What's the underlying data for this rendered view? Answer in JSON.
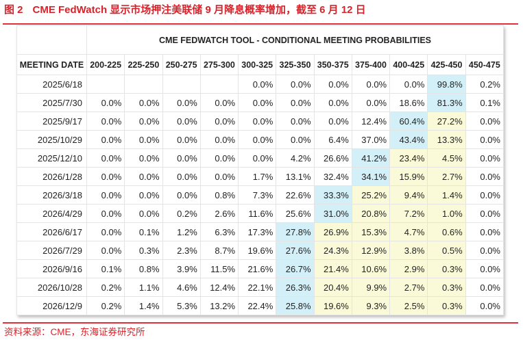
{
  "title": {
    "figure": "图 2",
    "text": "CME FedWatch 显示市场押注美联储 9 月降息概率增加，截至 6 月 12 日"
  },
  "table": {
    "super_header": "CME FEDWATCH TOOL - CONDITIONAL MEETING PROBABILITIES",
    "date_header": "MEETING DATE",
    "columns": [
      "200-225",
      "225-250",
      "250-275",
      "275-300",
      "300-325",
      "325-350",
      "350-375",
      "375-400",
      "400-425",
      "425-450",
      "450-475"
    ],
    "highlight_colors": {
      "most_likely": "#d3eff8",
      "between": "#fafad8"
    },
    "current_range_index": 9,
    "rows": [
      {
        "date": "2025/6/18",
        "values": [
          "",
          "",
          "",
          "",
          "0.0%",
          "0.0%",
          "0.0%",
          "0.0%",
          "0.0%",
          "99.8%",
          "0.2%"
        ],
        "most_likely": 9
      },
      {
        "date": "2025/7/30",
        "values": [
          "0.0%",
          "0.0%",
          "0.0%",
          "0.0%",
          "0.0%",
          "0.0%",
          "0.0%",
          "0.0%",
          "18.6%",
          "81.3%",
          "0.1%"
        ],
        "most_likely": 9
      },
      {
        "date": "2025/9/17",
        "values": [
          "0.0%",
          "0.0%",
          "0.0%",
          "0.0%",
          "0.0%",
          "0.0%",
          "0.0%",
          "12.4%",
          "60.4%",
          "27.2%",
          "0.0%"
        ],
        "most_likely": 8
      },
      {
        "date": "2025/10/29",
        "values": [
          "0.0%",
          "0.0%",
          "0.0%",
          "0.0%",
          "0.0%",
          "0.0%",
          "6.4%",
          "37.0%",
          "43.4%",
          "13.3%",
          "0.0%"
        ],
        "most_likely": 8
      },
      {
        "date": "2025/12/10",
        "values": [
          "0.0%",
          "0.0%",
          "0.0%",
          "0.0%",
          "0.0%",
          "4.2%",
          "26.6%",
          "41.2%",
          "23.4%",
          "4.5%",
          "0.0%"
        ],
        "most_likely": 7
      },
      {
        "date": "2026/1/28",
        "values": [
          "0.0%",
          "0.0%",
          "0.0%",
          "0.0%",
          "1.7%",
          "13.1%",
          "32.4%",
          "34.1%",
          "15.9%",
          "2.7%",
          "0.0%"
        ],
        "most_likely": 7
      },
      {
        "date": "2026/3/18",
        "values": [
          "0.0%",
          "0.0%",
          "0.0%",
          "0.8%",
          "7.3%",
          "22.6%",
          "33.3%",
          "25.2%",
          "9.4%",
          "1.4%",
          "0.0%"
        ],
        "most_likely": 6
      },
      {
        "date": "2026/4/29",
        "values": [
          "0.0%",
          "0.0%",
          "0.2%",
          "2.6%",
          "11.6%",
          "25.6%",
          "31.0%",
          "20.8%",
          "7.2%",
          "1.0%",
          "0.0%"
        ],
        "most_likely": 6
      },
      {
        "date": "2026/6/17",
        "values": [
          "0.0%",
          "0.1%",
          "1.2%",
          "6.3%",
          "17.3%",
          "27.8%",
          "26.9%",
          "15.3%",
          "4.7%",
          "0.6%",
          "0.0%"
        ],
        "most_likely": 5
      },
      {
        "date": "2026/7/29",
        "values": [
          "0.0%",
          "0.3%",
          "2.3%",
          "8.7%",
          "19.6%",
          "27.6%",
          "24.3%",
          "12.9%",
          "3.8%",
          "0.5%",
          "0.0%"
        ],
        "most_likely": 5
      },
      {
        "date": "2026/9/16",
        "values": [
          "0.1%",
          "0.8%",
          "3.9%",
          "11.5%",
          "21.6%",
          "26.7%",
          "21.4%",
          "10.6%",
          "2.9%",
          "0.3%",
          "0.0%"
        ],
        "most_likely": 5
      },
      {
        "date": "2026/10/28",
        "values": [
          "0.2%",
          "1.1%",
          "4.6%",
          "12.4%",
          "22.1%",
          "26.3%",
          "20.4%",
          "9.9%",
          "2.7%",
          "0.3%",
          "0.0%"
        ],
        "most_likely": 5
      },
      {
        "date": "2026/12/9",
        "values": [
          "0.2%",
          "1.4%",
          "5.3%",
          "13.2%",
          "22.4%",
          "25.8%",
          "19.6%",
          "9.3%",
          "2.5%",
          "0.3%",
          "0.0%"
        ],
        "most_likely": 5
      }
    ]
  },
  "source": "资料来源：CME，东海证券研究所"
}
